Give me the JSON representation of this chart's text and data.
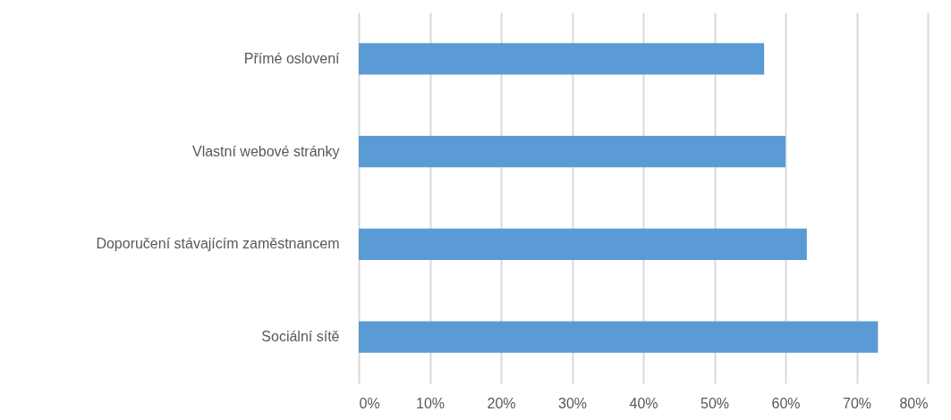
{
  "chart_data": {
    "type": "bar",
    "orientation": "horizontal",
    "categories": [
      "Přímé oslovení",
      "Vlastní webové stránky",
      "Doporučení stávajícím zaměstnancem",
      "Sociální sítě"
    ],
    "values": [
      57,
      60,
      63,
      73
    ],
    "color": "#5b9bd5",
    "xlim": [
      0,
      80
    ],
    "xticks": [
      {
        "value": 0,
        "label": "0%"
      },
      {
        "value": 10,
        "label": "10%"
      },
      {
        "value": 20,
        "label": "20%"
      },
      {
        "value": 30,
        "label": "30%"
      },
      {
        "value": 40,
        "label": "40%"
      },
      {
        "value": 50,
        "label": "50%"
      },
      {
        "value": 60,
        "label": "60%"
      },
      {
        "value": 70,
        "label": "70%"
      },
      {
        "value": 80,
        "label": "80%"
      }
    ],
    "grid": "x"
  }
}
